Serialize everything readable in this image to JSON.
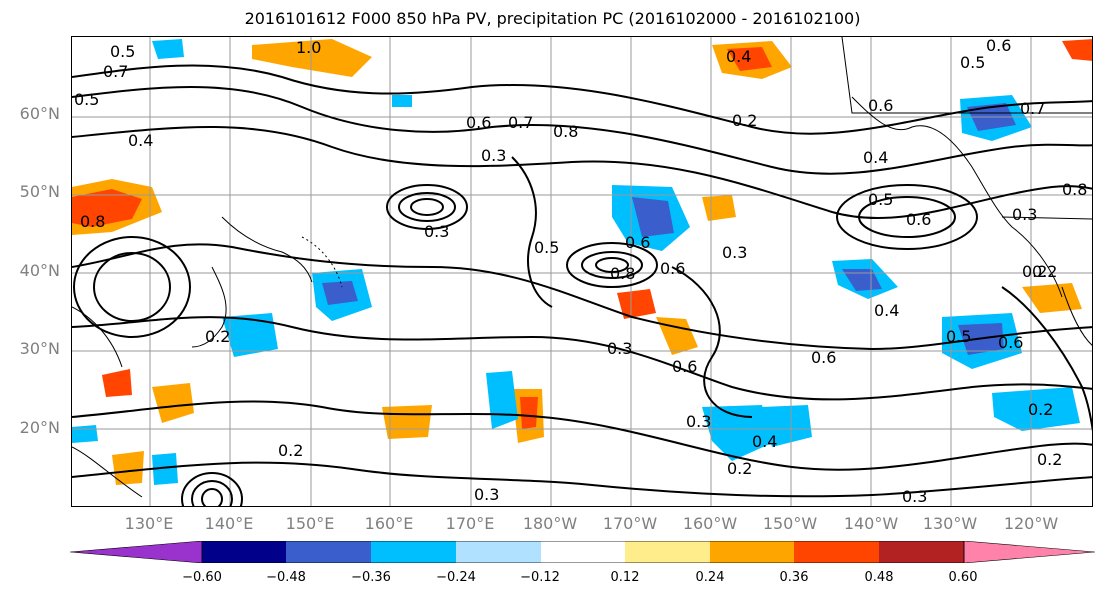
{
  "title": "2016101612 F000 850 hPa PV, precipitation PC (2016102000 - 2016102100)",
  "lat_labels": [
    "60°N",
    "50°N",
    "40°N",
    "30°N",
    "20°N"
  ],
  "lon_labels": [
    "130°E",
    "140°E",
    "150°E",
    "160°E",
    "170°E",
    "180°W",
    "170°W",
    "160°W",
    "150°W",
    "140°W",
    "130°W",
    "120°W"
  ],
  "contour_labels": [
    "1.0",
    "0.7",
    "0.5",
    "0.4",
    "0.8",
    "0.6",
    "0.3",
    "0.2",
    "0.6",
    "0.7",
    "0.8",
    "0.5",
    "0.4",
    "0.3",
    "0.6",
    "0.2",
    "0.5",
    "0.3",
    "0.6",
    "0.8",
    "0.6",
    "0.5",
    "0.3",
    "0.4",
    "0.6",
    "0.3",
    "0.6",
    "0.5",
    "0.2",
    "0.3",
    "0.4",
    "0.2",
    "0.3",
    "0.2",
    "0.6",
    "0.5",
    "0.4",
    "0.2",
    "0.7",
    "0.6",
    "0.2",
    "0.8",
    "0.2",
    "0.3"
  ],
  "colorbar": {
    "colors": [
      "#9a32cd",
      "#00008b",
      "#3a5fcd",
      "#00bfff",
      "#b0e2ff",
      "#ffffff",
      "#ffec8b",
      "#ffa500",
      "#ff4500",
      "#b22222",
      "#ff82ab"
    ],
    "tick_labels": [
      "−0.60",
      "−0.48",
      "−0.36",
      "−0.24",
      "−0.12",
      "0.12",
      "0.24",
      "0.36",
      "0.48",
      "0.60"
    ]
  }
}
